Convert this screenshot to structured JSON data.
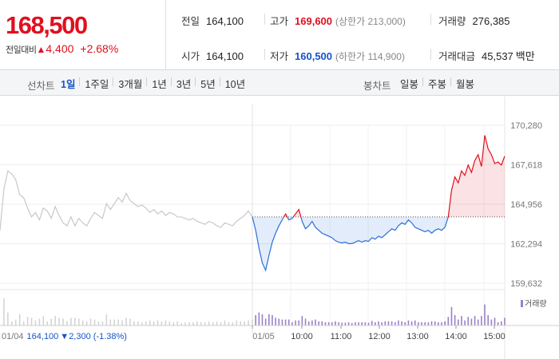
{
  "summary": {
    "current_price": "168,500",
    "change_label": "전일대비",
    "change_arrow": "▲",
    "change_amount": "4,400",
    "change_percent": "+2.68%",
    "prev_close_label": "전일",
    "prev_close": "164,100",
    "open_label": "시가",
    "open": "164,100",
    "high_label": "고가",
    "high": "169,600",
    "upper_limit_text": "(상한가 213,000)",
    "low_label": "저가",
    "low": "160,500",
    "lower_limit_text": "(하한가 114,900)",
    "volume_label": "거래량",
    "volume": "276,385",
    "trade_value_label": "거래대금",
    "trade_value": "45,537",
    "trade_value_unit": "백만"
  },
  "toolbar": {
    "line_chart_label": "선차트",
    "periods": [
      "1일",
      "1주일",
      "3개월",
      "1년",
      "3년",
      "5년",
      "10년"
    ],
    "active_period": "1일",
    "candle_chart_label": "봉차트",
    "candles": [
      "일봉",
      "주봉",
      "월봉"
    ]
  },
  "chart_data": {
    "type": "line",
    "y_ticks": [
      "170,280",
      "167,618",
      "164,956",
      "162,294",
      "159,632"
    ],
    "ylim": [
      159632,
      170280
    ],
    "baseline": 164100,
    "x_ticks": [
      "01/04",
      "01/05",
      "10:00",
      "11:00",
      "12:00",
      "13:00",
      "14:00",
      "15:00"
    ],
    "prev_day": {
      "date": "01/04",
      "close": "164,100",
      "change_arrow": "▼",
      "change_amount": "2,300",
      "change_percent": "(-1.38%)",
      "series": [
        163200,
        166000,
        167200,
        167000,
        166600,
        165600,
        165400,
        164700,
        164100,
        164400,
        163900,
        164700,
        164500,
        164000,
        164800,
        164200,
        163700,
        163500,
        164100,
        163500,
        164000,
        163700,
        163500,
        164000,
        164400,
        164200,
        164000,
        165000,
        164600,
        165000,
        165400,
        165100,
        165700,
        165200,
        165000,
        164800,
        164900,
        164700,
        164400,
        164600,
        164300,
        164500,
        164200,
        164400,
        164300,
        164100,
        164100,
        164000,
        163900,
        164000,
        163800,
        163700,
        163600,
        163800,
        163700,
        163500,
        163400,
        163700,
        163600,
        163500,
        163800,
        164000,
        164200,
        164500,
        164100
      ]
    },
    "intraday": {
      "date": "01/05",
      "series": [
        164100,
        163200,
        162000,
        161000,
        160500,
        161500,
        162400,
        163000,
        163500,
        163900,
        164300,
        163900,
        164000,
        164300,
        164600,
        163800,
        163300,
        163500,
        163800,
        163400,
        163200,
        163000,
        162900,
        162800,
        162700,
        162500,
        162400,
        162350,
        162400,
        162300,
        162300,
        162400,
        162500,
        162400,
        162500,
        162450,
        162700,
        162600,
        162800,
        162700,
        162900,
        163100,
        163300,
        163200,
        163500,
        163700,
        163600,
        163900,
        163700,
        163400,
        163300,
        163200,
        163100,
        163200,
        163000,
        163200,
        163300,
        163200,
        163400,
        164100,
        165900,
        166800,
        166400,
        167200,
        166900,
        167600,
        167100,
        167900,
        168300,
        167500,
        169600,
        168700,
        168300,
        167700,
        167800,
        167600,
        168200
      ]
    },
    "legend": "거래량",
    "series_colors": {
      "prev_day": "#c8c8c8",
      "below": "#2a6fd8",
      "above": "#e0101f",
      "volume": "#9b7fc8"
    }
  }
}
